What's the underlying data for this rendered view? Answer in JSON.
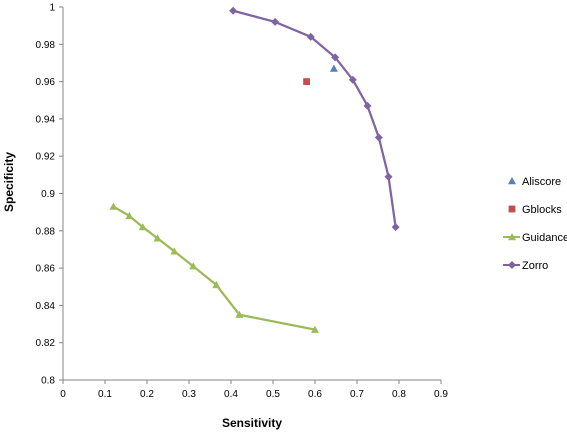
{
  "chart_data": {
    "type": "scatter",
    "xlabel": "Sensitivity",
    "ylabel": "Specificity",
    "xlim": [
      0,
      0.9
    ],
    "ylim": [
      0.8,
      1.0
    ],
    "x_ticks": [
      "0",
      "0.1",
      "0.2",
      "0.3",
      "0.4",
      "0.5",
      "0.6",
      "0.7",
      "0.8",
      "0.9"
    ],
    "y_ticks": [
      "0.8",
      "0.82",
      "0.84",
      "0.86",
      "0.88",
      "0.9",
      "0.92",
      "0.94",
      "0.96",
      "0.98",
      "1"
    ],
    "legend_position": "right",
    "series": [
      {
        "name": "Aliscore",
        "marker": "triangle",
        "color": "#4f81bd",
        "line": false,
        "points": [
          [
            0.645,
            0.967
          ]
        ]
      },
      {
        "name": "Gblocks",
        "marker": "square",
        "color": "#c0504d",
        "line": false,
        "points": [
          [
            0.58,
            0.96
          ]
        ]
      },
      {
        "name": "Guidance",
        "marker": "triangle",
        "color": "#9bbb59",
        "line": true,
        "points": [
          [
            0.12,
            0.893
          ],
          [
            0.158,
            0.888
          ],
          [
            0.19,
            0.882
          ],
          [
            0.225,
            0.876
          ],
          [
            0.265,
            0.869
          ],
          [
            0.31,
            0.861
          ],
          [
            0.365,
            0.851
          ],
          [
            0.42,
            0.835
          ],
          [
            0.6,
            0.827
          ]
        ]
      },
      {
        "name": "Zorro",
        "marker": "diamond",
        "color": "#8064a2",
        "line": true,
        "points": [
          [
            0.405,
            0.998
          ],
          [
            0.505,
            0.992
          ],
          [
            0.59,
            0.984
          ],
          [
            0.648,
            0.973
          ],
          [
            0.69,
            0.961
          ],
          [
            0.725,
            0.947
          ],
          [
            0.752,
            0.93
          ],
          [
            0.775,
            0.909
          ],
          [
            0.792,
            0.882
          ]
        ]
      }
    ]
  }
}
